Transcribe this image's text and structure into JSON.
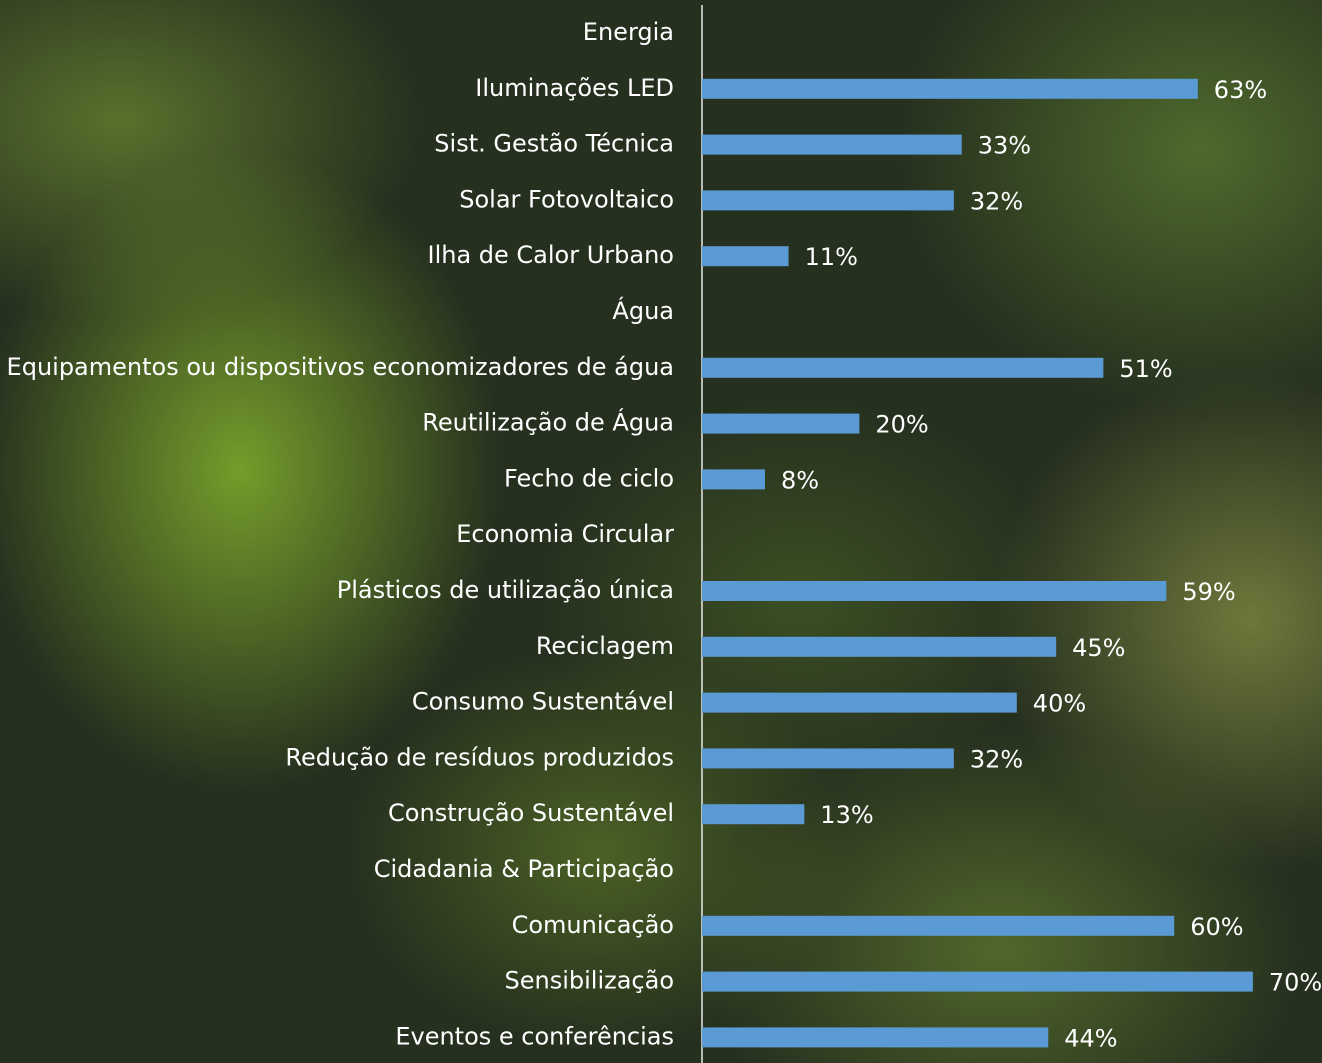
{
  "chart_data": {
    "type": "bar",
    "orientation": "horizontal",
    "categories": [
      "Energia",
      "Iluminações LED",
      "Sist. Gestão Técnica",
      "Solar Fotovoltaico",
      "Ilha de Calor Urbano",
      "Água",
      "Equipamentos ou dispositivos economizadores de água",
      "Reutilização de Água",
      "Fecho de ciclo",
      "Economia Circular",
      "Plásticos de utilização única",
      "Reciclagem",
      "Consumo Sustentável",
      "Redução de resíduos produzidos",
      "Construção Sustentável",
      "Cidadania & Participação",
      "Comunicação",
      "Sensibilização",
      "Eventos e conferências"
    ],
    "values": [
      null,
      63,
      33,
      32,
      11,
      null,
      51,
      20,
      8,
      null,
      59,
      45,
      40,
      32,
      13,
      null,
      60,
      70,
      44
    ],
    "value_labels": [
      null,
      "63%",
      "33%",
      "32%",
      "11%",
      null,
      "51%",
      "20%",
      "8%",
      null,
      "59%",
      "45%",
      "40%",
      "32%",
      "13%",
      null,
      "60%",
      "70%",
      "44%"
    ],
    "color": "#5b9bd5"
  }
}
